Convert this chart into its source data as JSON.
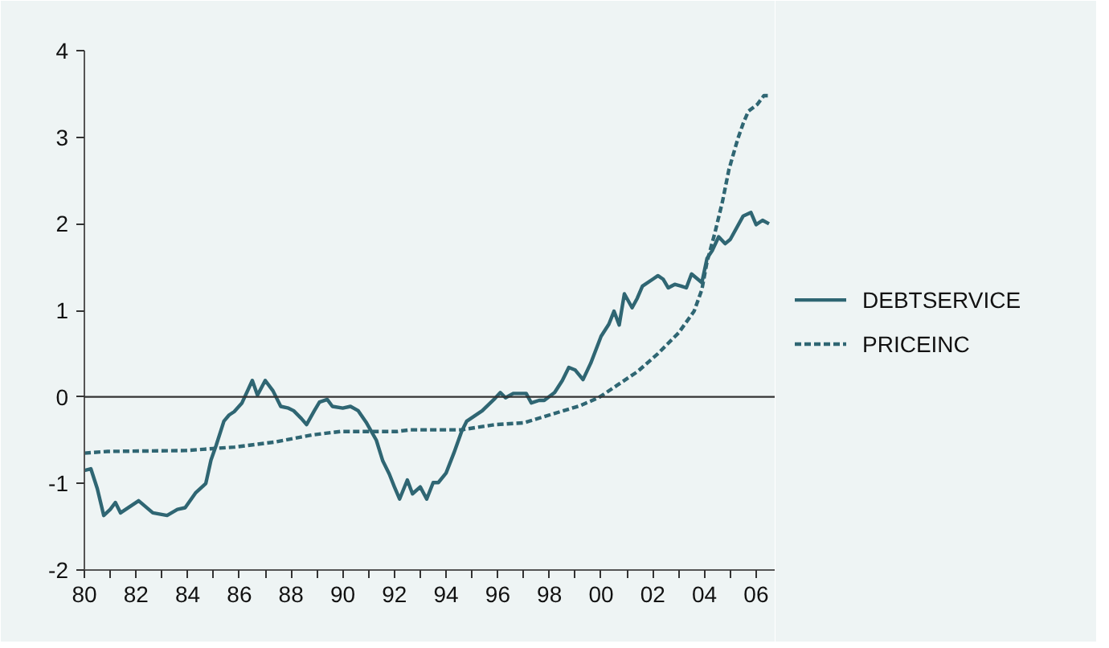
{
  "chart_data": {
    "type": "line",
    "xlim": [
      1980,
      2006.75
    ],
    "ylim": [
      -2,
      4
    ],
    "xticks": [
      {
        "value": 1980,
        "label": "80"
      },
      {
        "value": 1981,
        "label": null
      },
      {
        "value": 1982,
        "label": "82"
      },
      {
        "value": 1983,
        "label": null
      },
      {
        "value": 1984,
        "label": "84"
      },
      {
        "value": 1985,
        "label": null
      },
      {
        "value": 1986,
        "label": "86"
      },
      {
        "value": 1987,
        "label": null
      },
      {
        "value": 1988,
        "label": "88"
      },
      {
        "value": 1989,
        "label": null
      },
      {
        "value": 1990,
        "label": "90"
      },
      {
        "value": 1991,
        "label": null
      },
      {
        "value": 1992,
        "label": "92"
      },
      {
        "value": 1993,
        "label": null
      },
      {
        "value": 1994,
        "label": "94"
      },
      {
        "value": 1995,
        "label": null
      },
      {
        "value": 1996,
        "label": "96"
      },
      {
        "value": 1997,
        "label": null
      },
      {
        "value": 1998,
        "label": "98"
      },
      {
        "value": 1999,
        "label": null
      },
      {
        "value": 2000,
        "label": "00"
      },
      {
        "value": 2001,
        "label": null
      },
      {
        "value": 2002,
        "label": "02"
      },
      {
        "value": 2003,
        "label": null
      },
      {
        "value": 2004,
        "label": "04"
      },
      {
        "value": 2005,
        "label": null
      },
      {
        "value": 2006,
        "label": "06"
      }
    ],
    "yticks": [
      -2,
      -1,
      0,
      1,
      2,
      3,
      4
    ],
    "grid": false,
    "legend": "right",
    "ref_lines": [
      {
        "axis": "y",
        "value": 0,
        "color": "#333333",
        "line_style": "solid"
      }
    ],
    "series": [
      {
        "name": "DEBTSERVICE",
        "color": "#2f6673",
        "line_style": "solid",
        "x": [
          1980,
          1980.25,
          1980.5,
          1980.75,
          1981,
          1981.2,
          1981.4,
          1982.1,
          1982.65,
          1983.2,
          1983.6,
          1983.9,
          1984.3,
          1984.7,
          1984.9,
          1985.1,
          1985.4,
          1985.6,
          1985.8,
          1986.1,
          1986.5,
          1986.7,
          1987,
          1987.3,
          1987.6,
          1987.9,
          1988.1,
          1988.4,
          1988.6,
          1988.9,
          1989.1,
          1989.4,
          1989.6,
          1990,
          1990.3,
          1990.6,
          1990.9,
          1991.3,
          1991.55,
          1991.8,
          1992,
          1992.2,
          1992.5,
          1992.7,
          1993,
          1993.25,
          1993.5,
          1993.7,
          1994,
          1994.3,
          1994.6,
          1994.8,
          1995.1,
          1995.4,
          1995.85,
          1996.1,
          1996.3,
          1996.6,
          1997.1,
          1997.3,
          1997.6,
          1997.8,
          1998.2,
          1998.5,
          1998.75,
          1999,
          1999.3,
          1999.6,
          2000,
          2000.3,
          2000.5,
          2000.7,
          2000.9,
          2001.2,
          2001.4,
          2001.6,
          2002,
          2002.2,
          2002.4,
          2002.6,
          2002.85,
          2003.1,
          2003.3,
          2003.5,
          2003.9,
          2004.1,
          2004.3,
          2004.55,
          2004.8,
          2005,
          2005.5,
          2005.8,
          2006,
          2006.25,
          2006.5
        ],
        "values": [
          -0.85,
          -0.83,
          -1.06,
          -1.37,
          -1.3,
          -1.22,
          -1.34,
          -1.2,
          -1.34,
          -1.37,
          -1.3,
          -1.28,
          -1.11,
          -1.0,
          -0.73,
          -0.56,
          -0.28,
          -0.21,
          -0.17,
          -0.07,
          0.19,
          0.02,
          0.19,
          0.07,
          -0.11,
          -0.13,
          -0.16,
          -0.25,
          -0.32,
          -0.16,
          -0.06,
          -0.03,
          -0.11,
          -0.13,
          -0.11,
          -0.16,
          -0.29,
          -0.5,
          -0.74,
          -0.89,
          -1.04,
          -1.18,
          -0.96,
          -1.12,
          -1.04,
          -1.18,
          -0.99,
          -0.99,
          -0.88,
          -0.65,
          -0.4,
          -0.28,
          -0.22,
          -0.16,
          -0.03,
          0.05,
          -0.01,
          0.04,
          0.04,
          -0.07,
          -0.04,
          -0.04,
          0.05,
          0.19,
          0.34,
          0.31,
          0.2,
          0.39,
          0.7,
          0.84,
          0.99,
          0.83,
          1.19,
          1.03,
          1.14,
          1.28,
          1.36,
          1.4,
          1.36,
          1.26,
          1.3,
          1.28,
          1.26,
          1.42,
          1.32,
          1.6,
          1.69,
          1.85,
          1.77,
          1.82,
          2.09,
          2.13,
          1.99,
          2.04,
          2.0
        ]
      },
      {
        "name": "PRICEINC",
        "color": "#2f6673",
        "line_style": "dashed",
        "x": [
          1980,
          1980.9,
          1983.9,
          1985.8,
          1987.4,
          1988.8,
          1989.9,
          1992.1,
          1992.6,
          1994.6,
          1995.9,
          1997,
          1998.1,
          1999.2,
          1999.9,
          2000.6,
          2001.4,
          2002.2,
          2003,
          2003.6,
          2003.9,
          2004.1,
          2004.4,
          2004.7,
          2004.95,
          2005.3,
          2005.5,
          2005.7,
          2006.05,
          2006.3,
          2006.5
        ],
        "values": [
          -0.65,
          -0.63,
          -0.62,
          -0.58,
          -0.52,
          -0.44,
          -0.4,
          -0.4,
          -0.38,
          -0.38,
          -0.32,
          -0.3,
          -0.2,
          -0.1,
          -0.01,
          0.13,
          0.29,
          0.5,
          0.74,
          0.99,
          1.24,
          1.56,
          1.89,
          2.26,
          2.63,
          2.99,
          3.16,
          3.3,
          3.38,
          3.48,
          3.48
        ]
      }
    ]
  }
}
